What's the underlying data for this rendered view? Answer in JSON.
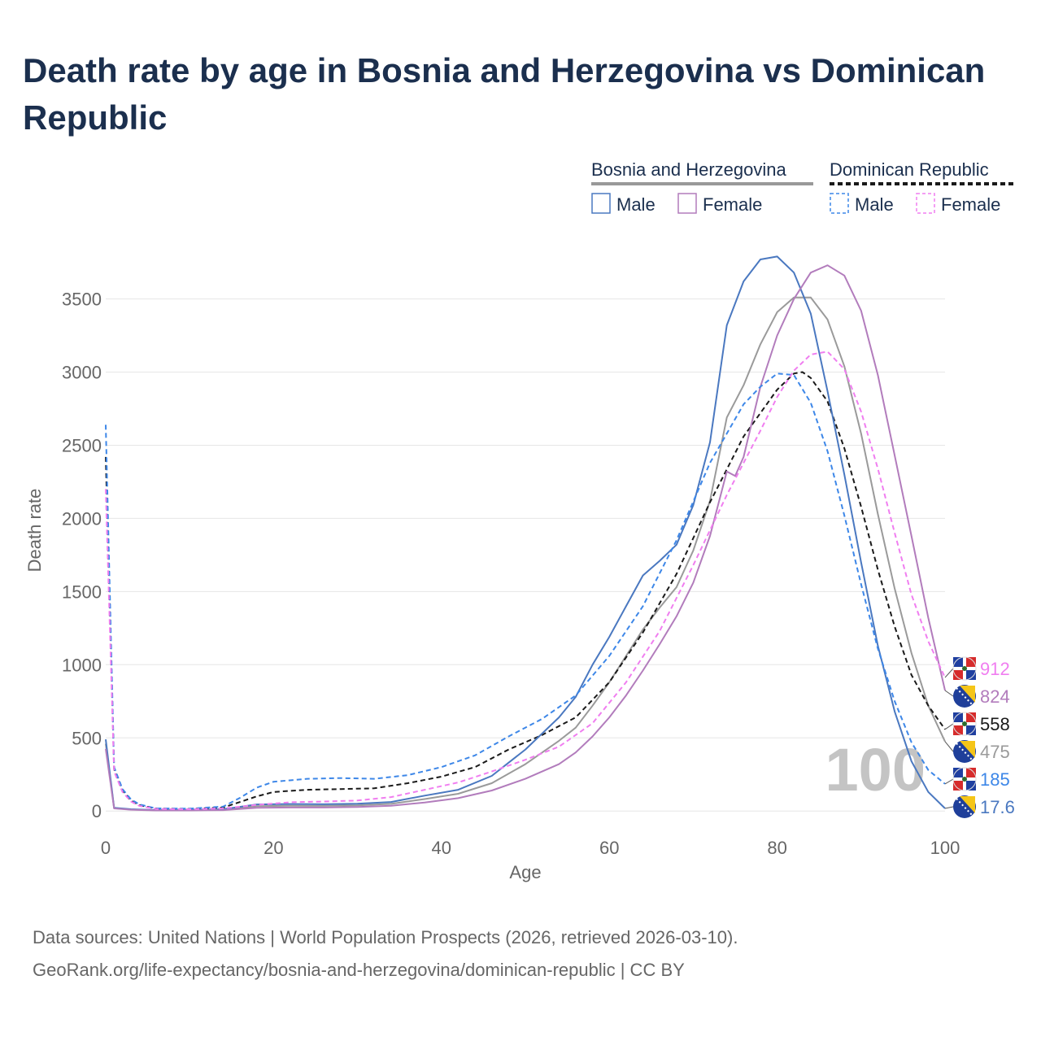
{
  "title": "Death rate by age in Bosnia and Herzegovina vs Dominican Republic",
  "source_line1": "Data sources: United Nations | World Population Prospects (2026, retrieved 2026-03-10).",
  "source_line2": "GeoRank.org/life-expectancy/bosnia-and-herzegovina/dominican-republic | CC BY",
  "legend": {
    "groups": [
      {
        "country": "Bosnia and Herzegovina",
        "dash": "solid",
        "items": [
          "Male",
          "Female"
        ]
      },
      {
        "country": "Dominican Republic",
        "dash": "dashed",
        "items": [
          "Male",
          "Female"
        ]
      }
    ]
  },
  "chart_data": {
    "type": "line",
    "xlabel": "Age",
    "ylabel": "Death rate",
    "xlim": [
      0,
      100
    ],
    "ylim": [
      -60,
      3820
    ],
    "x_ticks": [
      0,
      20,
      40,
      60,
      80,
      100
    ],
    "y_ticks": [
      0,
      500,
      1000,
      1500,
      2000,
      2500,
      3000,
      3500
    ],
    "grid": true,
    "watermark": "100",
    "series": [
      {
        "name": "Bosnia and Herzegovina Male",
        "country": "Bosnia and Herzegovina",
        "sex": "Male",
        "color": "#4a78c0",
        "dash": "solid",
        "end_label": "17.6",
        "points": [
          [
            0,
            490
          ],
          [
            1,
            22
          ],
          [
            3,
            12
          ],
          [
            6,
            6
          ],
          [
            10,
            6
          ],
          [
            14,
            12
          ],
          [
            18,
            45
          ],
          [
            22,
            48
          ],
          [
            26,
            46
          ],
          [
            30,
            50
          ],
          [
            34,
            62
          ],
          [
            38,
            105
          ],
          [
            42,
            145
          ],
          [
            46,
            240
          ],
          [
            50,
            420
          ],
          [
            54,
            640
          ],
          [
            56,
            780
          ],
          [
            58,
            1000
          ],
          [
            60,
            1190
          ],
          [
            62,
            1400
          ],
          [
            64,
            1610
          ],
          [
            66,
            1710
          ],
          [
            68,
            1820
          ],
          [
            70,
            2090
          ],
          [
            72,
            2520
          ],
          [
            74,
            3320
          ],
          [
            76,
            3620
          ],
          [
            78,
            3770
          ],
          [
            80,
            3790
          ],
          [
            82,
            3680
          ],
          [
            84,
            3400
          ],
          [
            86,
            2870
          ],
          [
            88,
            2300
          ],
          [
            90,
            1700
          ],
          [
            92,
            1130
          ],
          [
            94,
            680
          ],
          [
            96,
            340
          ],
          [
            98,
            130
          ],
          [
            100,
            17.6
          ]
        ]
      },
      {
        "name": "Bosnia and Herzegovina Female",
        "country": "Bosnia and Herzegovina",
        "sex": "Female",
        "color": "#b27cbc",
        "dash": "solid",
        "end_label": "824",
        "points": [
          [
            0,
            425
          ],
          [
            1,
            18
          ],
          [
            3,
            9
          ],
          [
            6,
            4
          ],
          [
            10,
            4
          ],
          [
            14,
            6
          ],
          [
            18,
            22
          ],
          [
            22,
            24
          ],
          [
            26,
            24
          ],
          [
            30,
            28
          ],
          [
            34,
            36
          ],
          [
            38,
            58
          ],
          [
            42,
            88
          ],
          [
            46,
            140
          ],
          [
            50,
            220
          ],
          [
            54,
            320
          ],
          [
            56,
            400
          ],
          [
            58,
            510
          ],
          [
            60,
            640
          ],
          [
            62,
            790
          ],
          [
            64,
            960
          ],
          [
            66,
            1140
          ],
          [
            68,
            1330
          ],
          [
            70,
            1560
          ],
          [
            72,
            1880
          ],
          [
            74,
            2320
          ],
          [
            75,
            2290
          ],
          [
            76,
            2420
          ],
          [
            78,
            2900
          ],
          [
            80,
            3250
          ],
          [
            82,
            3500
          ],
          [
            84,
            3680
          ],
          [
            86,
            3730
          ],
          [
            88,
            3660
          ],
          [
            90,
            3420
          ],
          [
            92,
            2980
          ],
          [
            94,
            2430
          ],
          [
            96,
            1880
          ],
          [
            98,
            1320
          ],
          [
            100,
            824
          ]
        ]
      },
      {
        "name": "Bosnia and Herzegovina Total",
        "country": "Bosnia and Herzegovina",
        "sex": "Total",
        "color": "#9a9a9a",
        "dash": "solid",
        "end_label": "475",
        "points": [
          [
            0,
            460
          ],
          [
            1,
            20
          ],
          [
            3,
            10
          ],
          [
            6,
            5
          ],
          [
            10,
            5
          ],
          [
            14,
            9
          ],
          [
            18,
            33
          ],
          [
            22,
            36
          ],
          [
            26,
            35
          ],
          [
            30,
            39
          ],
          [
            34,
            49
          ],
          [
            38,
            82
          ],
          [
            42,
            118
          ],
          [
            46,
            190
          ],
          [
            50,
            320
          ],
          [
            54,
            480
          ],
          [
            56,
            570
          ],
          [
            58,
            720
          ],
          [
            60,
            880
          ],
          [
            62,
            1060
          ],
          [
            64,
            1240
          ],
          [
            66,
            1390
          ],
          [
            68,
            1530
          ],
          [
            70,
            1780
          ],
          [
            72,
            2120
          ],
          [
            74,
            2690
          ],
          [
            76,
            2910
          ],
          [
            78,
            3190
          ],
          [
            80,
            3410
          ],
          [
            82,
            3510
          ],
          [
            84,
            3510
          ],
          [
            86,
            3360
          ],
          [
            88,
            3040
          ],
          [
            90,
            2580
          ],
          [
            92,
            2030
          ],
          [
            94,
            1520
          ],
          [
            96,
            1080
          ],
          [
            98,
            720
          ],
          [
            100,
            475
          ]
        ]
      },
      {
        "name": "Dominican Republic Male",
        "country": "Dominican Republic",
        "sex": "Male",
        "color": "#3d87e8",
        "dash": "dashed",
        "end_label": "185",
        "points": [
          [
            0,
            2640
          ],
          [
            1,
            300
          ],
          [
            2,
            150
          ],
          [
            3,
            80
          ],
          [
            4,
            45
          ],
          [
            6,
            18
          ],
          [
            10,
            16
          ],
          [
            14,
            30
          ],
          [
            16,
            90
          ],
          [
            18,
            160
          ],
          [
            20,
            200
          ],
          [
            24,
            220
          ],
          [
            28,
            225
          ],
          [
            32,
            220
          ],
          [
            36,
            245
          ],
          [
            40,
            300
          ],
          [
            44,
            380
          ],
          [
            48,
            510
          ],
          [
            52,
            630
          ],
          [
            56,
            790
          ],
          [
            60,
            1060
          ],
          [
            64,
            1400
          ],
          [
            68,
            1850
          ],
          [
            72,
            2380
          ],
          [
            76,
            2780
          ],
          [
            78,
            2900
          ],
          [
            80,
            2990
          ],
          [
            82,
            2980
          ],
          [
            84,
            2790
          ],
          [
            86,
            2460
          ],
          [
            88,
            2020
          ],
          [
            90,
            1550
          ],
          [
            92,
            1110
          ],
          [
            94,
            750
          ],
          [
            96,
            470
          ],
          [
            98,
            280
          ],
          [
            100,
            185
          ]
        ]
      },
      {
        "name": "Dominican Republic Female",
        "country": "Dominican Republic",
        "sex": "Female",
        "color": "#f07ef0",
        "dash": "dashed",
        "end_label": "912",
        "points": [
          [
            0,
            2200
          ],
          [
            1,
            270
          ],
          [
            2,
            130
          ],
          [
            3,
            65
          ],
          [
            4,
            35
          ],
          [
            6,
            14
          ],
          [
            10,
            12
          ],
          [
            14,
            18
          ],
          [
            18,
            42
          ],
          [
            22,
            60
          ],
          [
            26,
            65
          ],
          [
            30,
            72
          ],
          [
            34,
            95
          ],
          [
            38,
            145
          ],
          [
            42,
            195
          ],
          [
            46,
            270
          ],
          [
            50,
            350
          ],
          [
            54,
            440
          ],
          [
            58,
            600
          ],
          [
            62,
            880
          ],
          [
            66,
            1230
          ],
          [
            70,
            1680
          ],
          [
            74,
            2160
          ],
          [
            78,
            2600
          ],
          [
            80,
            2830
          ],
          [
            82,
            3010
          ],
          [
            84,
            3120
          ],
          [
            86,
            3140
          ],
          [
            88,
            3020
          ],
          [
            90,
            2730
          ],
          [
            92,
            2340
          ],
          [
            94,
            1900
          ],
          [
            96,
            1480
          ],
          [
            98,
            1160
          ],
          [
            100,
            912
          ]
        ]
      },
      {
        "name": "Dominican Republic Total",
        "country": "Dominican Republic",
        "sex": "Total",
        "color": "#1a1a1a",
        "dash": "dashed",
        "end_label": "558",
        "points": [
          [
            0,
            2420
          ],
          [
            1,
            285
          ],
          [
            2,
            140
          ],
          [
            3,
            72
          ],
          [
            4,
            40
          ],
          [
            6,
            16
          ],
          [
            10,
            14
          ],
          [
            14,
            24
          ],
          [
            18,
            100
          ],
          [
            20,
            130
          ],
          [
            24,
            145
          ],
          [
            28,
            150
          ],
          [
            32,
            155
          ],
          [
            36,
            190
          ],
          [
            40,
            235
          ],
          [
            44,
            300
          ],
          [
            48,
            420
          ],
          [
            52,
            520
          ],
          [
            56,
            640
          ],
          [
            60,
            880
          ],
          [
            64,
            1220
          ],
          [
            68,
            1620
          ],
          [
            72,
            2110
          ],
          [
            76,
            2560
          ],
          [
            80,
            2880
          ],
          [
            82,
            2990
          ],
          [
            83,
            3000
          ],
          [
            84,
            2960
          ],
          [
            86,
            2800
          ],
          [
            88,
            2480
          ],
          [
            90,
            2080
          ],
          [
            92,
            1650
          ],
          [
            94,
            1260
          ],
          [
            96,
            930
          ],
          [
            98,
            720
          ],
          [
            100,
            558
          ]
        ]
      }
    ]
  }
}
